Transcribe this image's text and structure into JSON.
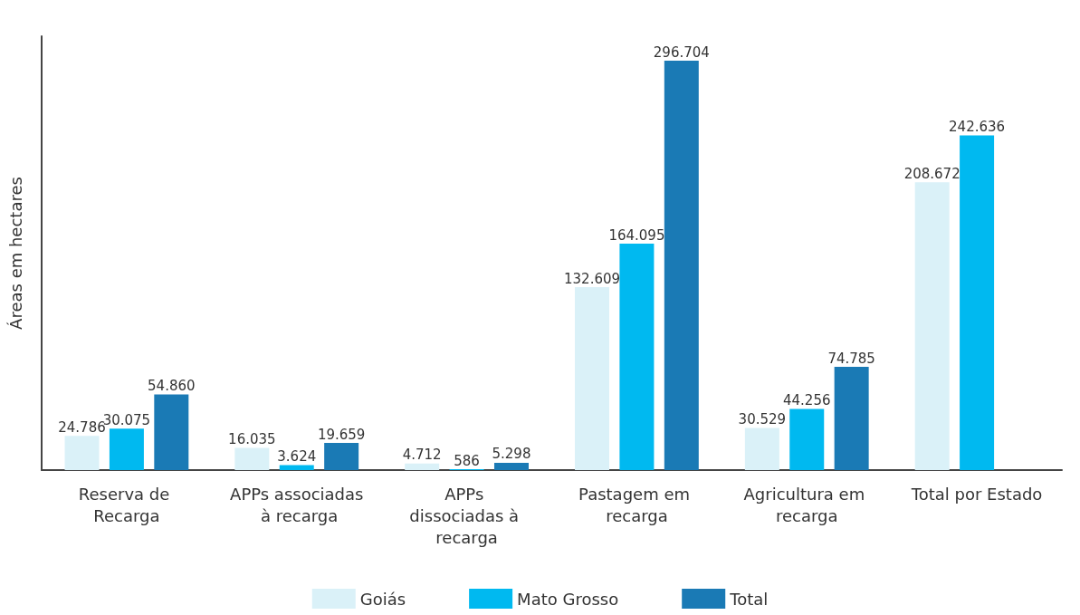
{
  "chart_data": {
    "type": "bar",
    "ylabel": "Áreas em hectares",
    "categories": [
      "Reserva de Recarga",
      "APPs associadas à recarga",
      "APPs dissociadas à recarga",
      "Pastagem em recarga",
      "Agricultura em recarga",
      "Total por Estado"
    ],
    "series": [
      {
        "name": "Goiás",
        "color": "#daf1f8",
        "values": [
          24786,
          16035,
          4712,
          132609,
          30529,
          208672
        ],
        "value_labels": [
          "24.786",
          "16.035",
          "4.712",
          "132.609",
          "30.529",
          "208.672"
        ]
      },
      {
        "name": "Mato Grosso",
        "color": "#00b9f0",
        "values": [
          30075,
          3624,
          586,
          164095,
          44256,
          242636
        ],
        "value_labels": [
          "30.075",
          "3.624",
          "586",
          "164.095",
          "44.256",
          "242.636"
        ]
      },
      {
        "name": "Total",
        "color": "#1a7ab5",
        "values": [
          54860,
          19659,
          5298,
          296704,
          74785,
          null
        ],
        "value_labels": [
          "54.860",
          "19.659",
          "5.298",
          "296.704",
          "74.785",
          null
        ]
      }
    ],
    "tick_labels": "x",
    "grid": false,
    "legend": "bottom"
  }
}
